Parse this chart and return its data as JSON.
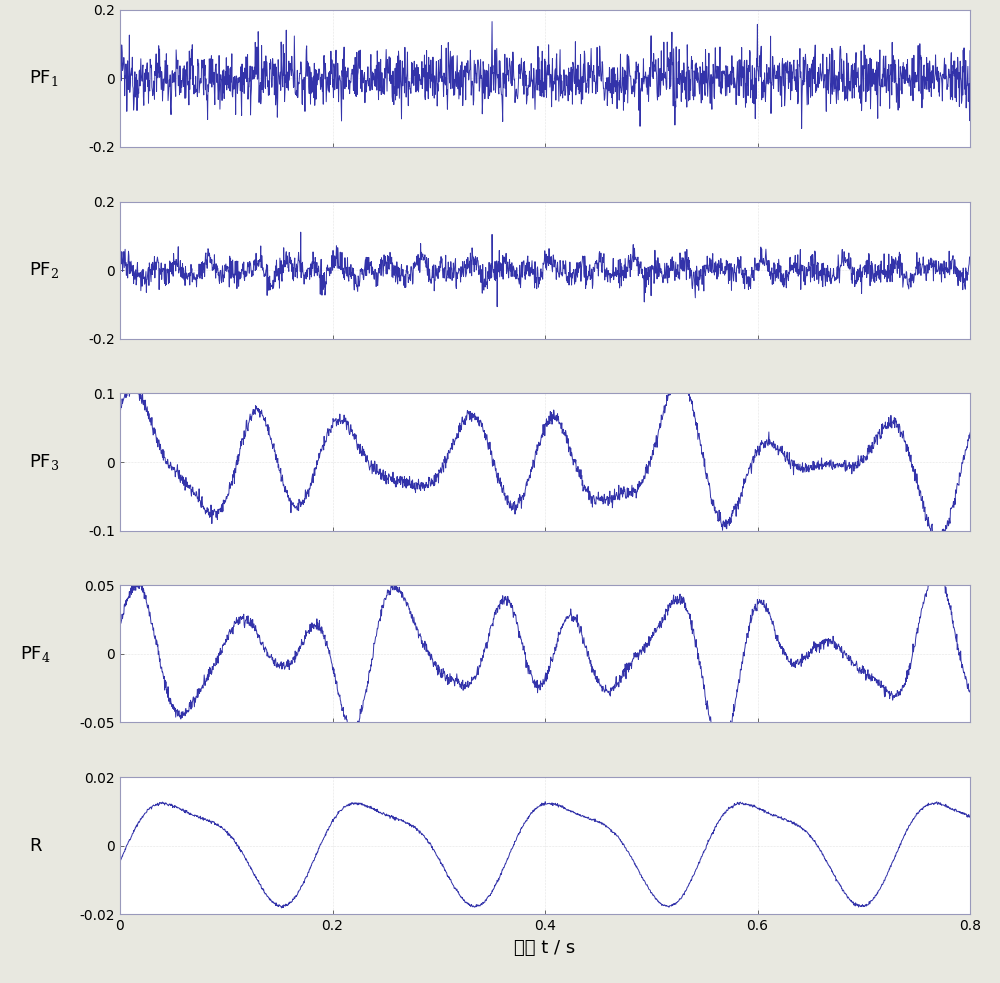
{
  "title": "",
  "xlabel": "时间 t / s",
  "xlim": [
    0,
    0.8
  ],
  "x_ticks": [
    0,
    0.2,
    0.4,
    0.6,
    0.8
  ],
  "subplots": [
    {
      "label": "PF",
      "label_sub": "1",
      "ylim": [
        -0.2,
        0.2
      ],
      "yticks": [
        -0.2,
        0,
        0.2
      ],
      "line_color": "#3333aa",
      "type": "noise_high"
    },
    {
      "label": "PF",
      "label_sub": "2",
      "ylim": [
        -0.2,
        0.2
      ],
      "yticks": [
        -0.2,
        0,
        0.2
      ],
      "line_color": "#3333aa",
      "type": "noise_mid"
    },
    {
      "label": "PF",
      "label_sub": "3",
      "ylim": [
        -0.1,
        0.1
      ],
      "yticks": [
        -0.1,
        0,
        0.1
      ],
      "line_color": "#3333aa",
      "type": "oscillate_noisy"
    },
    {
      "label": "PF",
      "label_sub": "4",
      "ylim": [
        -0.05,
        0.05
      ],
      "yticks": [
        -0.05,
        0,
        0.05
      ],
      "line_color": "#3333aa",
      "type": "oscillate_smooth"
    },
    {
      "label": "R",
      "label_sub": "",
      "ylim": [
        -0.02,
        0.02
      ],
      "yticks": [
        -0.02,
        0,
        0.02
      ],
      "line_color": "#3333aa",
      "type": "smooth_sine"
    }
  ],
  "fig_width": 10.0,
  "fig_height": 9.83,
  "dpi": 100,
  "background_color": "#e8e8e0",
  "axes_background": "#ffffff",
  "label_fontsize": 13,
  "tick_fontsize": 10,
  "xlabel_fontsize": 13
}
